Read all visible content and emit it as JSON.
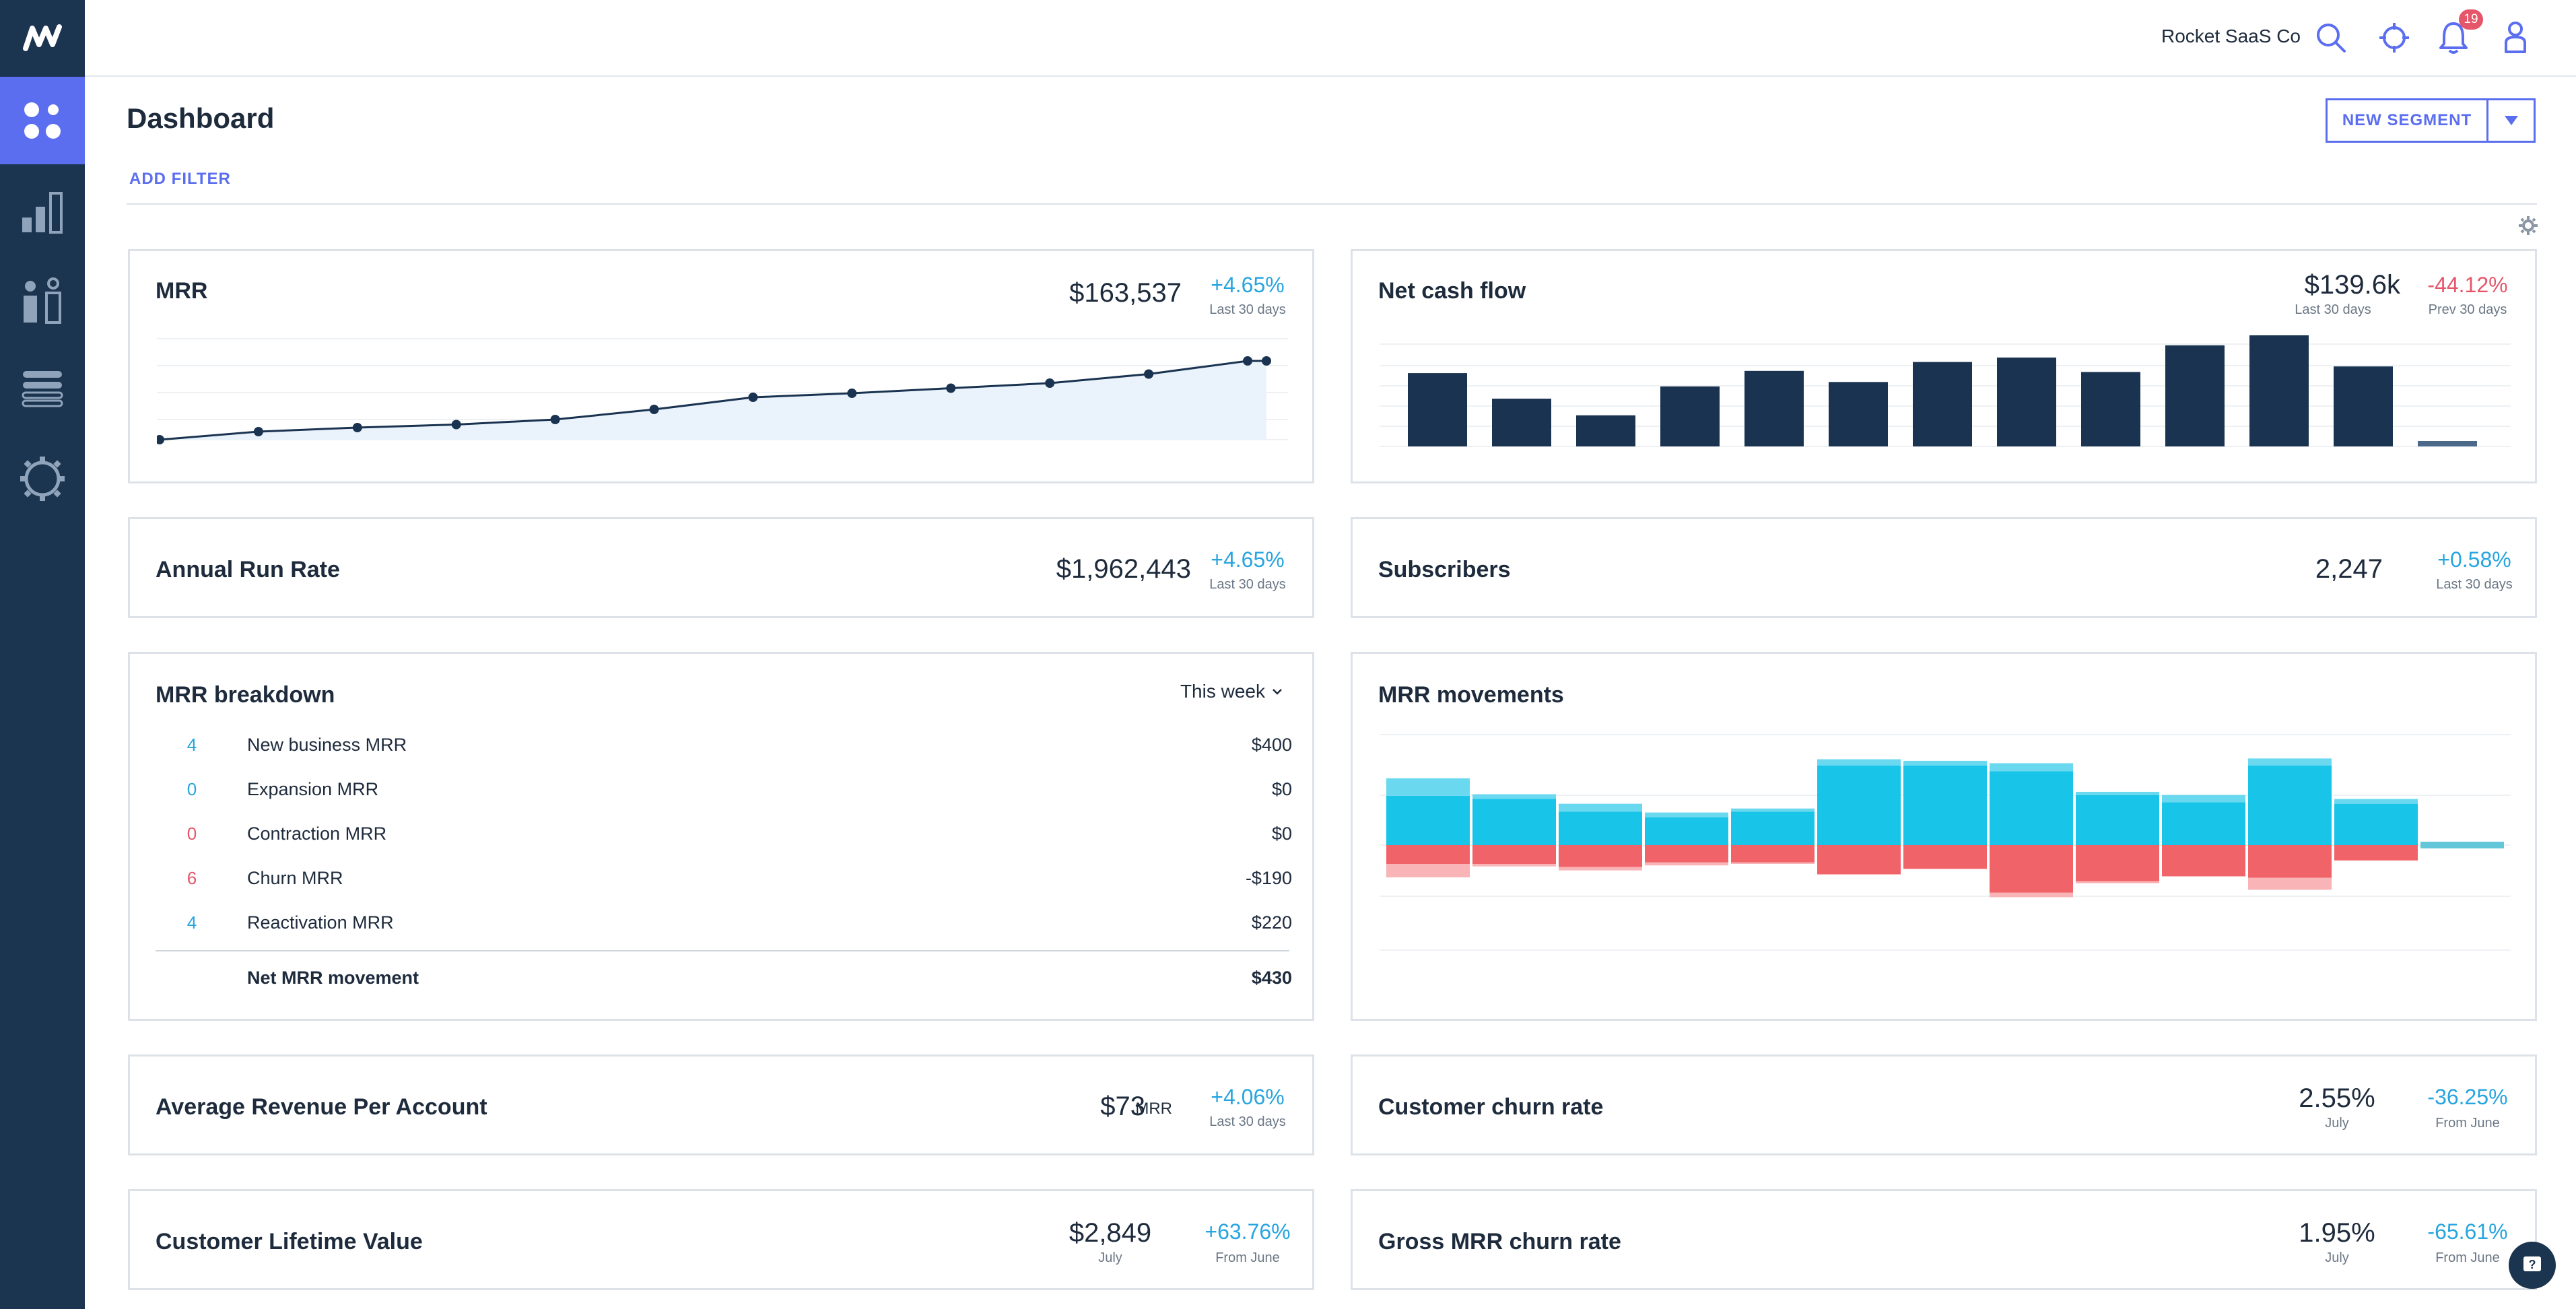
{
  "app": {
    "logo_icon": "chartmogul-logo-icon",
    "company": "Rocket SaaS Co",
    "notification_count": "19"
  },
  "sidebar": {
    "items": [
      {
        "name": "dashboard",
        "icon": "dashboard-icon",
        "active": true
      },
      {
        "name": "analytics",
        "icon": "bar-chart-icon",
        "active": false
      },
      {
        "name": "customers",
        "icon": "people-icon",
        "active": false
      },
      {
        "name": "data",
        "icon": "list-icon",
        "active": false
      },
      {
        "name": "settings",
        "icon": "gear-icon",
        "active": false
      }
    ]
  },
  "page": {
    "title": "Dashboard",
    "new_segment": "NEW SEGMENT",
    "add_filter": "ADD FILTER"
  },
  "colors": {
    "sidebar": "#1b344f",
    "accent": "#5b6ef0",
    "bar": "#1a3350",
    "positive": "#27a5df",
    "negative": "#e5566a",
    "cyan": "#18c4e8",
    "red": "#f06368"
  },
  "cards": {
    "mrr": {
      "title": "MRR",
      "value": "$163,537",
      "change": "+4.65%",
      "period": "Last 30 days"
    },
    "cash": {
      "title": "Net cash flow",
      "value": "$139.6k",
      "value_period": "Last 30 days",
      "change": "-44.12%",
      "change_period": "Prev 30 days"
    },
    "arr": {
      "title": "Annual Run Rate",
      "value": "$1,962,443",
      "change": "+4.65%",
      "period": "Last 30 days"
    },
    "subs": {
      "title": "Subscribers",
      "value": "2,247",
      "change": "+0.58%",
      "period": "Last 30 days"
    },
    "breakdown": {
      "title": "MRR breakdown",
      "range": "This week",
      "rows": [
        {
          "count": "4",
          "label": "New business MRR",
          "value": "$400"
        },
        {
          "count": "0",
          "label": "Expansion MRR",
          "value": "$0"
        },
        {
          "count": "0",
          "label": "Contraction MRR",
          "value": "$0"
        },
        {
          "count": "6",
          "label": "Churn MRR",
          "value": "-$190"
        },
        {
          "count": "4",
          "label": "Reactivation MRR",
          "value": "$220"
        }
      ],
      "total_label": "Net MRR movement",
      "total_value": "$430"
    },
    "movements": {
      "title": "MRR movements"
    },
    "arpa": {
      "title": "Average Revenue Per Account",
      "value": "$73",
      "unit": "MRR",
      "change": "+4.06%",
      "period": "Last 30 days"
    },
    "churn": {
      "title": "Customer churn rate",
      "value": "2.55%",
      "value_period": "July",
      "change": "-36.25%",
      "change_period": "From June"
    },
    "ltv": {
      "title": "Customer Lifetime Value",
      "value": "$2,849",
      "value_period": "July",
      "change": "+63.76%",
      "change_period": "From June"
    },
    "gross": {
      "title": "Gross MRR churn rate",
      "value": "1.95%",
      "value_period": "July",
      "change": "-65.61%",
      "change_period": "From June"
    }
  },
  "chart_data": [
    {
      "type": "line",
      "name": "mrr-sparkline",
      "values": [
        0,
        0.08,
        0.12,
        0.15,
        0.2,
        0.3,
        0.42,
        0.46,
        0.51,
        0.56,
        0.65,
        0.78,
        0.78
      ]
    },
    {
      "type": "bar",
      "name": "net-cash-flow",
      "values": [
        0.66,
        0.43,
        0.28,
        0.54,
        0.68,
        0.58,
        0.76,
        0.8,
        0.67,
        0.91,
        1.0,
        0.72,
        0.04
      ]
    },
    {
      "type": "bar",
      "name": "mrr-movements",
      "series": [
        {
          "name": "pos_dark",
          "values": [
            0.62,
            0.58,
            0.42,
            0.35,
            0.42,
            1.0,
            1.0,
            0.93,
            0.63,
            0.54,
            1.0,
            0.52,
            0.04
          ]
        },
        {
          "name": "pos_light",
          "values": [
            0.22,
            0.06,
            0.1,
            0.06,
            0.04,
            0.08,
            0.06,
            0.1,
            0.04,
            0.09,
            0.09,
            0.06,
            0
          ]
        },
        {
          "name": "neg_dark",
          "values": [
            0.38,
            0.38,
            0.44,
            0.35,
            0.35,
            0.59,
            0.48,
            0.96,
            0.73,
            0.63,
            0.66,
            0.31,
            0
          ]
        },
        {
          "name": "neg_light",
          "values": [
            0.27,
            0.05,
            0.07,
            0.06,
            0.03,
            0,
            0,
            0.09,
            0.04,
            0,
            0.24,
            0,
            0
          ]
        }
      ]
    }
  ]
}
